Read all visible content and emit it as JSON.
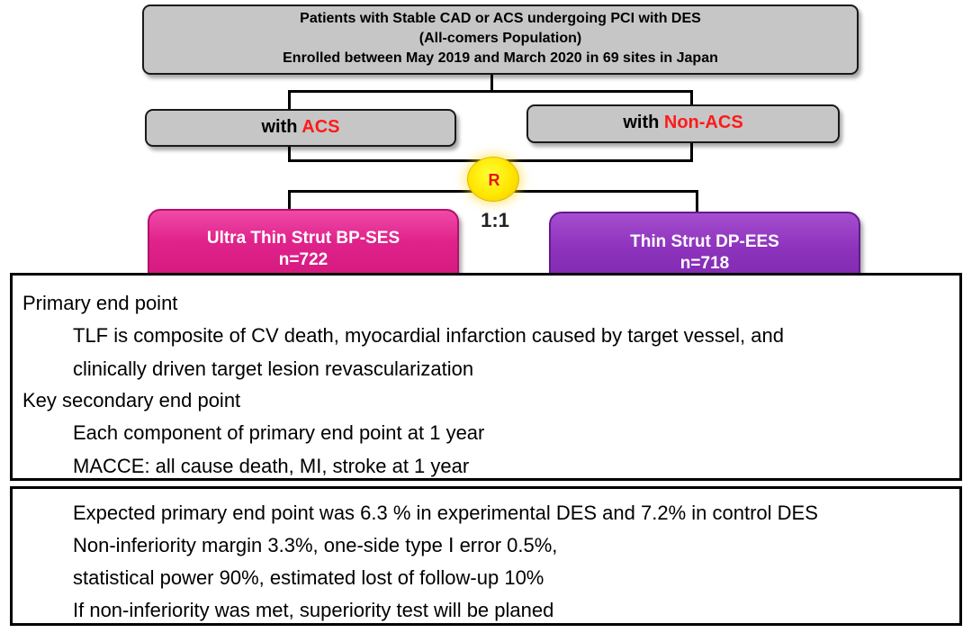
{
  "population": {
    "line1": "Patients with Stable CAD or ACS undergoing PCI with DES",
    "line2": "(All-comers Population)",
    "line3": "Enrolled between May 2019 and March 2020 in 69 sites in Japan"
  },
  "groups": {
    "acs_prefix": "with ",
    "acs_highlight": "ACS",
    "nonacs_prefix": "with ",
    "nonacs_highlight": "Non-ACS"
  },
  "randomization": {
    "symbol": "R",
    "ratio": "1:1"
  },
  "arms": [
    {
      "name": "Ultra Thin Strut BP-SES",
      "n": "n=722",
      "color": "#e0238b"
    },
    {
      "name": "Thin Strut DP-EES",
      "n": "n=718",
      "color": "#8d33bd"
    }
  ],
  "endpoints": {
    "primary_heading": "Primary end point",
    "primary_line1": "TLF is composite of CV death, myocardial infarction caused by target vessel, and",
    "primary_line2": "clinically driven target lesion revascularization",
    "secondary_heading": "Key secondary end point",
    "secondary_line1": "Each component of primary end point at 1 year",
    "secondary_line2": "MACCE: all cause death, MI, stroke at 1 year"
  },
  "statistics": {
    "line1": "Expected primary end point was 6.3 % in experimental DES and 7.2% in control DES",
    "line2": "Non-inferiority margin 3.3%, one-side type Ⅰ error 0.5%,",
    "line3": "statistical power 90%, estimated lost of follow-up 10%",
    "line4": "If non-inferiority was met, superiority test will be planed"
  },
  "colors": {
    "highlight_red": "#ff1a1a",
    "box_gray": "#c6c6c6",
    "random_yellow": "#ffe600"
  }
}
